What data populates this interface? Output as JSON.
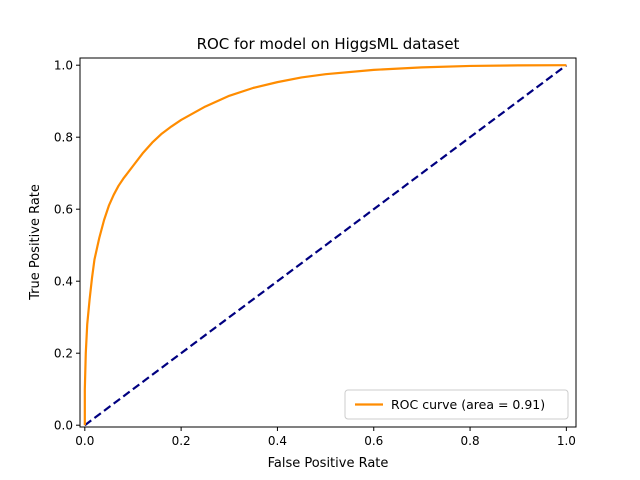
{
  "chart_data": {
    "type": "line",
    "title": "ROC for model on HiggsML dataset",
    "xlabel": "False Positive Rate",
    "ylabel": "True Positive Rate",
    "xlim": [
      -0.01,
      1.02
    ],
    "ylim": [
      -0.005,
      1.02
    ],
    "xticks": [
      "0.0",
      "0.2",
      "0.4",
      "0.6",
      "0.8",
      "1.0"
    ],
    "yticks": [
      "0.0",
      "0.2",
      "0.4",
      "0.6",
      "0.8",
      "1.0"
    ],
    "grid": false,
    "legend_position": "lower right",
    "series": [
      {
        "name": "ROC curve (area = 0.91)",
        "color": "#ff8c00",
        "style": "solid",
        "x": [
          0.0,
          0.0,
          0.002,
          0.005,
          0.01,
          0.015,
          0.02,
          0.03,
          0.04,
          0.05,
          0.06,
          0.07,
          0.08,
          0.1,
          0.12,
          0.14,
          0.16,
          0.18,
          0.2,
          0.25,
          0.3,
          0.35,
          0.4,
          0.45,
          0.5,
          0.6,
          0.7,
          0.8,
          0.9,
          1.0
        ],
        "y": [
          0.0,
          0.1,
          0.2,
          0.28,
          0.35,
          0.41,
          0.46,
          0.52,
          0.57,
          0.61,
          0.64,
          0.665,
          0.685,
          0.72,
          0.755,
          0.785,
          0.81,
          0.83,
          0.848,
          0.885,
          0.915,
          0.937,
          0.953,
          0.966,
          0.975,
          0.987,
          0.994,
          0.998,
          0.9995,
          1.0
        ]
      },
      {
        "name": "",
        "color": "#000080",
        "style": "dashed",
        "x": [
          0,
          1
        ],
        "y": [
          0,
          1
        ]
      }
    ]
  }
}
